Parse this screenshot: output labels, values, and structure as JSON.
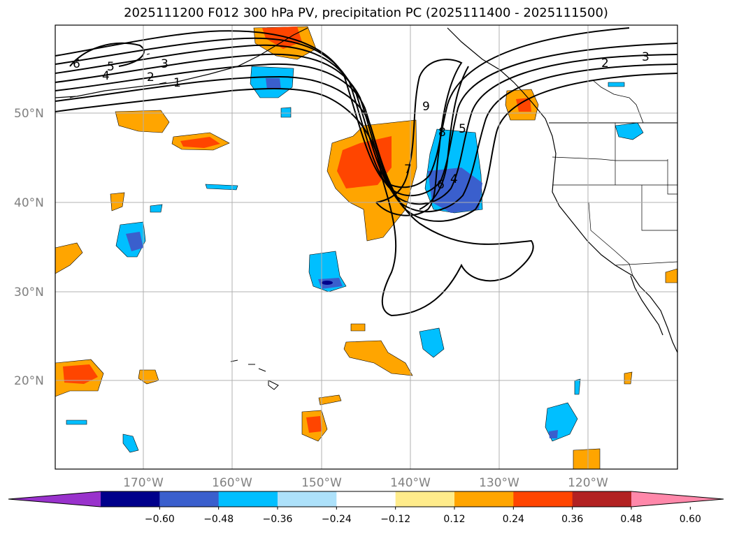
{
  "title": "2025111200 F012 300 hPa PV, precipitation PC (2025111400 - 2025111500)",
  "map": {
    "lat_labels": [
      "50°N",
      "40°N",
      "30°N",
      "20°N"
    ],
    "lon_labels": [
      "170°W",
      "160°W",
      "150°W",
      "140°W",
      "130°W",
      "120°W"
    ],
    "pv_contour_labels": [
      "6",
      "5",
      "4",
      "3",
      "2",
      "1",
      "2",
      "3",
      "9",
      "8",
      "5",
      "6",
      "4",
      "7"
    ]
  },
  "colorbar": {
    "ticks": [
      "−0.60",
      "−0.48",
      "−0.36",
      "−0.24",
      "−0.12",
      "0.12",
      "0.24",
      "0.36",
      "0.48",
      "0.60"
    ],
    "colors": [
      "#9932CC",
      "#00008B",
      "#3A5FCD",
      "#00BFFF",
      "#ADE1FA",
      "#FFFFFF",
      "#FFEC8B",
      "#FFA500",
      "#FF4500",
      "#B22222",
      "#FF88AA"
    ]
  }
}
